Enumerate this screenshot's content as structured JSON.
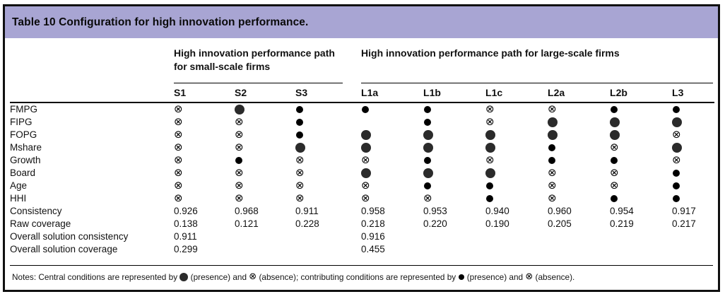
{
  "table": {
    "title": "Table 10 Configuration for high innovation performance.",
    "group_headers": [
      {
        "label": "High innovation performance path for small-scale firms",
        "columns_spanned": 3
      },
      {
        "label": "High innovation performance path for large-scale firms",
        "columns_spanned": 6
      }
    ],
    "columns": [
      "S1",
      "S2",
      "S3",
      "L1a",
      "L1b",
      "L1c",
      "L2a",
      "L2b",
      "L3"
    ],
    "condition_rows": [
      {
        "label": "FMPG",
        "cells": [
          "absence",
          "central-presence",
          "presence",
          "presence",
          "presence",
          "absence",
          "absence",
          "presence",
          "presence"
        ]
      },
      {
        "label": "FIPG",
        "cells": [
          "absence",
          "absence",
          "presence",
          "blank",
          "presence",
          "absence",
          "central-presence",
          "central-presence",
          "central-presence"
        ]
      },
      {
        "label": "FOPG",
        "cells": [
          "absence",
          "absence",
          "presence",
          "central-presence",
          "central-presence",
          "central-presence",
          "central-presence",
          "central-presence",
          "absence"
        ]
      },
      {
        "label": "Mshare",
        "cells": [
          "absence",
          "absence",
          "central-presence",
          "central-presence",
          "central-presence",
          "central-presence",
          "presence",
          "absence",
          "central-presence"
        ]
      },
      {
        "label": "Growth",
        "cells": [
          "absence",
          "presence",
          "absence",
          "absence",
          "presence",
          "absence",
          "presence",
          "presence",
          "absence"
        ]
      },
      {
        "label": "Board",
        "cells": [
          "absence",
          "absence",
          "absence",
          "central-presence",
          "central-presence",
          "central-presence",
          "absence",
          "absence",
          "presence"
        ]
      },
      {
        "label": "Age",
        "cells": [
          "absence",
          "absence",
          "absence",
          "absence",
          "presence",
          "presence",
          "absence",
          "absence",
          "presence"
        ]
      },
      {
        "label": "HHI",
        "cells": [
          "absence",
          "absence",
          "absence",
          "absence",
          "absence",
          "presence",
          "absence",
          "presence",
          "presence"
        ]
      }
    ],
    "stat_rows": [
      {
        "label": "Consistency",
        "values": [
          "0.926",
          "0.968",
          "0.911",
          "0.958",
          "0.953",
          "0.940",
          "0.960",
          "0.954",
          "0.917"
        ]
      },
      {
        "label": "Raw coverage",
        "values": [
          "0.138",
          "0.121",
          "0.228",
          "0.218",
          "0.220",
          "0.190",
          "0.205",
          "0.219",
          "0.217"
        ]
      },
      {
        "label": "Overall solution consistency",
        "values": [
          "0.911",
          "",
          "",
          "0.916",
          "",
          "",
          "",
          "",
          ""
        ]
      },
      {
        "label": "Overall solution coverage",
        "values": [
          "0.299",
          "",
          "",
          "0.455",
          "",
          "",
          "",
          "",
          ""
        ]
      }
    ],
    "notes_segments": [
      {
        "type": "text",
        "value": "Notes: Central conditions are represented by "
      },
      {
        "type": "symbol",
        "value": "central-presence"
      },
      {
        "type": "text",
        "value": " (presence) and "
      },
      {
        "type": "symbol",
        "value": "absence"
      },
      {
        "type": "text",
        "value": " (absence); contributing conditions are represented by "
      },
      {
        "type": "symbol",
        "value": "presence"
      },
      {
        "type": "text",
        "value": " (presence) and "
      },
      {
        "type": "symbol",
        "value": "absence"
      },
      {
        "type": "text",
        "value": " (absence)."
      }
    ]
  },
  "symbol_legend": {
    "central-presence": "large filled circle",
    "presence": "small filled circle",
    "absence": "crossed circle",
    "blank": "empty cell"
  },
  "colors": {
    "title_band": "#a8a5d3",
    "frame_border": "#101010",
    "central_circle": "#2b2b2b",
    "small_circle": "#000000"
  }
}
